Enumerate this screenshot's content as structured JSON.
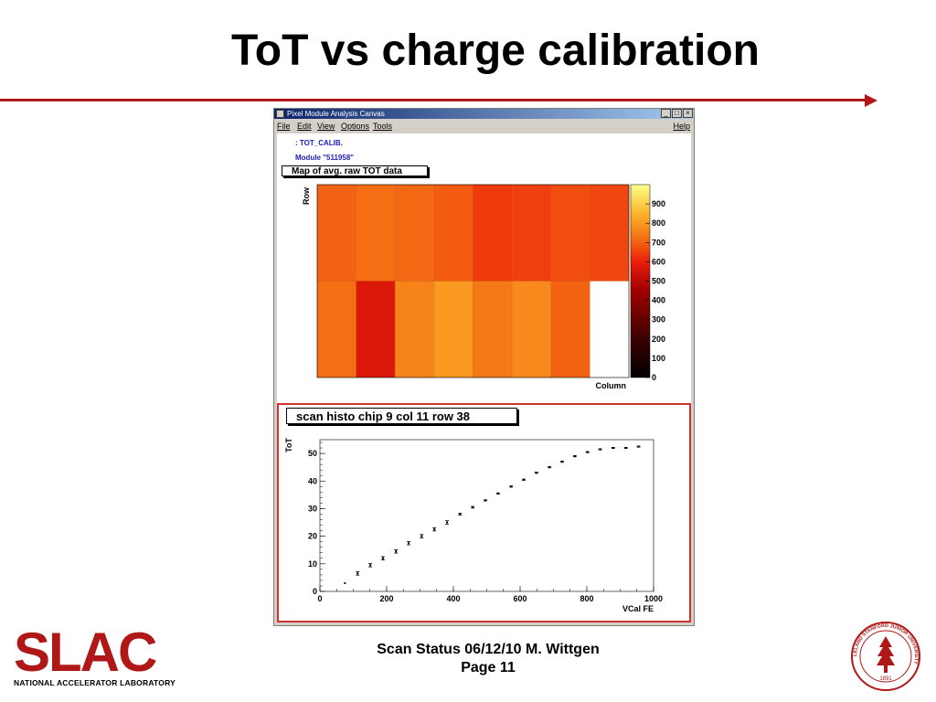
{
  "slide": {
    "title": "ToT vs charge calibration",
    "footer_line1": "Scan Status 06/12/10   M. Wittgen",
    "footer_line2": "Page 11",
    "logo_text": "SLAC",
    "logo_subtext": "NATIONAL ACCELERATOR LABORATORY",
    "seal_text": "LELAND STANFORD JUNIOR UNIVERSITY",
    "seal_year": "1891",
    "accent_color": "#b01818"
  },
  "window": {
    "title": "Pixel Module Analysis Canvas",
    "buttons": [
      "_",
      "□",
      "×"
    ],
    "menu": [
      "File",
      "Edit",
      "View",
      "Options",
      "Tools"
    ],
    "help": "Help",
    "info_line1": ": TOT_CALIB.",
    "info_line2": "Module \"511958\""
  },
  "heatmap": {
    "title": "Map of avg. raw TOT data",
    "xlabel": "Column",
    "ylabel": "Row",
    "colorbar_ticks": [
      "900",
      "800",
      "700",
      "600",
      "500",
      "400",
      "300",
      "200",
      "100",
      "0"
    ]
  },
  "scan": {
    "title": "scan histo chip 9 col 11 row 38",
    "xlabel": "VCal FE",
    "ylabel": "ToT",
    "xticks": [
      "0",
      "200",
      "400",
      "600",
      "800",
      "1000"
    ],
    "yticks": [
      "0",
      "10",
      "20",
      "30",
      "40",
      "50"
    ]
  },
  "chart_data": [
    {
      "type": "heatmap",
      "title": "Map of avg. raw TOT data",
      "xlabel": "Column",
      "ylabel": "Row",
      "zlim": [
        0,
        1000
      ],
      "grid_rows": 2,
      "grid_cols": 8,
      "values": [
        [
          700,
          720,
          710,
          690,
          640,
          650,
          670,
          660
        ],
        [
          720,
          570,
          760,
          800,
          740,
          770,
          700,
          null
        ]
      ]
    },
    {
      "type": "scatter",
      "title": "scan histo chip 9 col 11 row 38",
      "xlabel": "VCal FE",
      "ylabel": "ToT",
      "xlim": [
        0,
        1000
      ],
      "ylim": [
        0,
        55
      ],
      "grid": false,
      "x": [
        75,
        113,
        151,
        189,
        228,
        266,
        305,
        343,
        381,
        420,
        458,
        496,
        534,
        573,
        611,
        649,
        688,
        726,
        764,
        802,
        840,
        879,
        917,
        955
      ],
      "y": [
        3,
        6.5,
        9.5,
        12,
        14.5,
        17.5,
        20,
        22.5,
        25,
        28,
        30.5,
        33,
        35.5,
        38,
        40.5,
        43,
        45,
        47,
        49,
        50.5,
        51.5,
        52,
        52,
        52.5
      ],
      "yerr": [
        0,
        0.6,
        0.6,
        0.6,
        0.6,
        0.6,
        0.6,
        0.6,
        0.6,
        0.3,
        0.3,
        0.2,
        0.2,
        0.2,
        0.2,
        0.2,
        0.2,
        0.2,
        0.2,
        0.2,
        0.2,
        0.2,
        0.2,
        0.2
      ]
    }
  ]
}
